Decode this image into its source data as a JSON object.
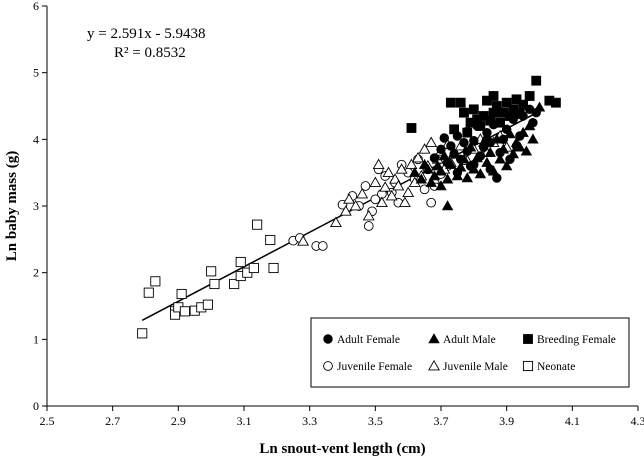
{
  "chart_data": {
    "type": "scatter",
    "xlabel": "Ln snout-vent length (cm)",
    "ylabel": "Ln baby mass (g)",
    "xlim": [
      2.5,
      4.3
    ],
    "ylim": [
      0,
      6
    ],
    "xticks": [
      "2.5",
      "2.7",
      "2.9",
      "3.1",
      "3.3",
      "3.5",
      "3.7",
      "3.9",
      "4.1",
      "4.3"
    ],
    "yticks": [
      "0",
      "1",
      "2",
      "3",
      "4",
      "5",
      "6"
    ],
    "grid": false,
    "legend_position": "bottom-right",
    "annotations": [
      "y = 2.591x - 5.9438",
      "R² = 0.8532"
    ],
    "trendline": {
      "slope": 2.591,
      "intercept": -5.9438,
      "x_range": [
        2.79,
        3.99
      ]
    },
    "series": [
      {
        "name": "Adult Female",
        "marker": "filled-circle",
        "points": [
          [
            3.68,
            3.72
          ],
          [
            3.7,
            3.85
          ],
          [
            3.71,
            4.02
          ],
          [
            3.72,
            3.65
          ],
          [
            3.73,
            3.9
          ],
          [
            3.74,
            3.78
          ],
          [
            3.75,
            4.05
          ],
          [
            3.76,
            3.7
          ],
          [
            3.77,
            3.95
          ],
          [
            3.78,
            3.82
          ],
          [
            3.78,
            4.12
          ],
          [
            3.79,
            3.6
          ],
          [
            3.8,
            3.98
          ],
          [
            3.81,
            4.2
          ],
          [
            3.82,
            3.75
          ],
          [
            3.83,
            3.88
          ],
          [
            3.84,
            4.1
          ],
          [
            3.85,
            3.55
          ],
          [
            3.85,
            3.95
          ],
          [
            3.86,
            4.22
          ],
          [
            3.87,
            3.42
          ],
          [
            3.88,
            3.8
          ],
          [
            3.89,
            4.0
          ],
          [
            3.9,
            4.15
          ],
          [
            3.91,
            3.7
          ],
          [
            3.92,
            4.3
          ],
          [
            3.93,
            3.9
          ],
          [
            3.94,
            4.05
          ],
          [
            3.95,
            4.35
          ],
          [
            3.97,
            4.45
          ],
          [
            3.98,
            4.25
          ],
          [
            3.99,
            4.4
          ],
          [
            3.75,
            3.5
          ],
          [
            3.8,
            3.62
          ],
          [
            3.88,
            4.4
          ]
        ]
      },
      {
        "name": "Adult Male",
        "marker": "filled-triangle",
        "points": [
          [
            3.62,
            3.5
          ],
          [
            3.64,
            3.4
          ],
          [
            3.65,
            3.62
          ],
          [
            3.66,
            3.55
          ],
          [
            3.67,
            3.35
          ],
          [
            3.68,
            3.45
          ],
          [
            3.69,
            3.6
          ],
          [
            3.7,
            3.3
          ],
          [
            3.7,
            3.52
          ],
          [
            3.71,
            3.75
          ],
          [
            3.72,
            3.4
          ],
          [
            3.72,
            3.0
          ],
          [
            3.73,
            3.62
          ],
          [
            3.74,
            3.8
          ],
          [
            3.75,
            3.45
          ],
          [
            3.76,
            3.58
          ],
          [
            3.77,
            3.7
          ],
          [
            3.78,
            3.42
          ],
          [
            3.79,
            3.88
          ],
          [
            3.8,
            3.55
          ],
          [
            3.81,
            3.72
          ],
          [
            3.82,
            3.48
          ],
          [
            3.83,
            3.95
          ],
          [
            3.84,
            3.65
          ],
          [
            3.85,
            3.8
          ],
          [
            3.86,
            3.52
          ],
          [
            3.87,
            4.0
          ],
          [
            3.88,
            3.7
          ],
          [
            3.89,
            3.85
          ],
          [
            3.9,
            3.6
          ],
          [
            3.91,
            4.08
          ],
          [
            3.92,
            3.78
          ],
          [
            3.93,
            3.95
          ],
          [
            3.94,
            3.88
          ],
          [
            3.95,
            4.1
          ],
          [
            3.96,
            3.82
          ],
          [
            3.98,
            4.0
          ],
          [
            4.0,
            4.48
          ],
          [
            3.97,
            4.2
          ],
          [
            3.84,
            4.05
          ]
        ]
      },
      {
        "name": "Breeding Female",
        "marker": "filled-square",
        "points": [
          [
            3.61,
            4.17
          ],
          [
            3.73,
            4.55
          ],
          [
            3.74,
            4.15
          ],
          [
            3.76,
            4.55
          ],
          [
            3.77,
            4.4
          ],
          [
            3.79,
            4.25
          ],
          [
            3.8,
            4.45
          ],
          [
            3.81,
            4.3
          ],
          [
            3.82,
            4.2
          ],
          [
            3.83,
            4.35
          ],
          [
            3.84,
            4.58
          ],
          [
            3.85,
            4.28
          ],
          [
            3.86,
            4.4
          ],
          [
            3.87,
            4.5
          ],
          [
            3.88,
            4.25
          ],
          [
            3.89,
            4.4
          ],
          [
            3.9,
            4.55
          ],
          [
            3.91,
            4.35
          ],
          [
            3.92,
            4.45
          ],
          [
            3.93,
            4.6
          ],
          [
            3.94,
            4.38
          ],
          [
            3.95,
            4.52
          ],
          [
            3.97,
            4.65
          ],
          [
            3.99,
            4.88
          ],
          [
            4.03,
            4.58
          ],
          [
            4.05,
            4.55
          ],
          [
            3.78,
            4.1
          ],
          [
            3.86,
            4.65
          ]
        ]
      },
      {
        "name": "Juvenile Female",
        "marker": "open-circle",
        "points": [
          [
            3.25,
            2.48
          ],
          [
            3.27,
            2.52
          ],
          [
            3.32,
            2.4
          ],
          [
            3.34,
            2.4
          ],
          [
            3.4,
            3.02
          ],
          [
            3.43,
            3.15
          ],
          [
            3.45,
            3.0
          ],
          [
            3.47,
            3.3
          ],
          [
            3.48,
            2.7
          ],
          [
            3.49,
            2.92
          ],
          [
            3.5,
            3.1
          ],
          [
            3.51,
            3.55
          ],
          [
            3.53,
            3.45
          ],
          [
            3.55,
            3.2
          ],
          [
            3.56,
            3.35
          ],
          [
            3.58,
            3.62
          ],
          [
            3.6,
            3.5
          ],
          [
            3.62,
            3.4
          ],
          [
            3.63,
            3.7
          ],
          [
            3.65,
            3.25
          ],
          [
            3.66,
            3.55
          ],
          [
            3.67,
            3.05
          ],
          [
            3.68,
            3.3
          ],
          [
            3.7,
            3.48
          ],
          [
            3.72,
            3.6
          ],
          [
            3.52,
            3.18
          ],
          [
            3.57,
            3.05
          ]
        ]
      },
      {
        "name": "Juvenile Male",
        "marker": "open-triangle",
        "points": [
          [
            3.28,
            2.47
          ],
          [
            3.38,
            2.75
          ],
          [
            3.41,
            2.92
          ],
          [
            3.42,
            3.1
          ],
          [
            3.44,
            3.0
          ],
          [
            3.46,
            3.18
          ],
          [
            3.48,
            2.85
          ],
          [
            3.5,
            3.35
          ],
          [
            3.51,
            3.62
          ],
          [
            3.52,
            3.05
          ],
          [
            3.53,
            3.28
          ],
          [
            3.54,
            3.5
          ],
          [
            3.55,
            3.15
          ],
          [
            3.56,
            3.4
          ],
          [
            3.57,
            3.3
          ],
          [
            3.58,
            3.55
          ],
          [
            3.59,
            3.05
          ],
          [
            3.6,
            3.2
          ],
          [
            3.61,
            3.62
          ],
          [
            3.62,
            3.35
          ],
          [
            3.63,
            3.72
          ],
          [
            3.64,
            3.45
          ],
          [
            3.65,
            3.85
          ],
          [
            3.66,
            3.6
          ],
          [
            3.67,
            3.95
          ],
          [
            3.68,
            3.4
          ],
          [
            3.69,
            3.7
          ],
          [
            3.7,
            3.82
          ],
          [
            3.71,
            3.55
          ],
          [
            3.72,
            3.92
          ],
          [
            3.73,
            3.65
          ],
          [
            3.74,
            3.78
          ],
          [
            3.76,
            3.9
          ],
          [
            3.78,
            3.68
          ],
          [
            3.8,
            3.85
          ],
          [
            3.82,
            4.0
          ],
          [
            3.84,
            3.8
          ],
          [
            3.86,
            3.95
          ],
          [
            3.88,
            4.05
          ],
          [
            3.9,
            3.88
          ]
        ]
      },
      {
        "name": "Neonate",
        "marker": "open-square",
        "points": [
          [
            2.79,
            1.09
          ],
          [
            2.81,
            1.7
          ],
          [
            2.83,
            1.87
          ],
          [
            2.89,
            1.42
          ],
          [
            2.89,
            1.37
          ],
          [
            2.9,
            1.48
          ],
          [
            2.91,
            1.68
          ],
          [
            2.92,
            1.42
          ],
          [
            2.95,
            1.43
          ],
          [
            2.97,
            1.48
          ],
          [
            2.99,
            1.52
          ],
          [
            3.0,
            2.02
          ],
          [
            3.01,
            1.83
          ],
          [
            3.07,
            1.83
          ],
          [
            3.09,
            1.95
          ],
          [
            3.09,
            2.16
          ],
          [
            3.11,
            2.0
          ],
          [
            3.13,
            2.07
          ],
          [
            3.14,
            2.72
          ],
          [
            3.18,
            2.49
          ],
          [
            3.19,
            2.07
          ]
        ]
      }
    ]
  }
}
